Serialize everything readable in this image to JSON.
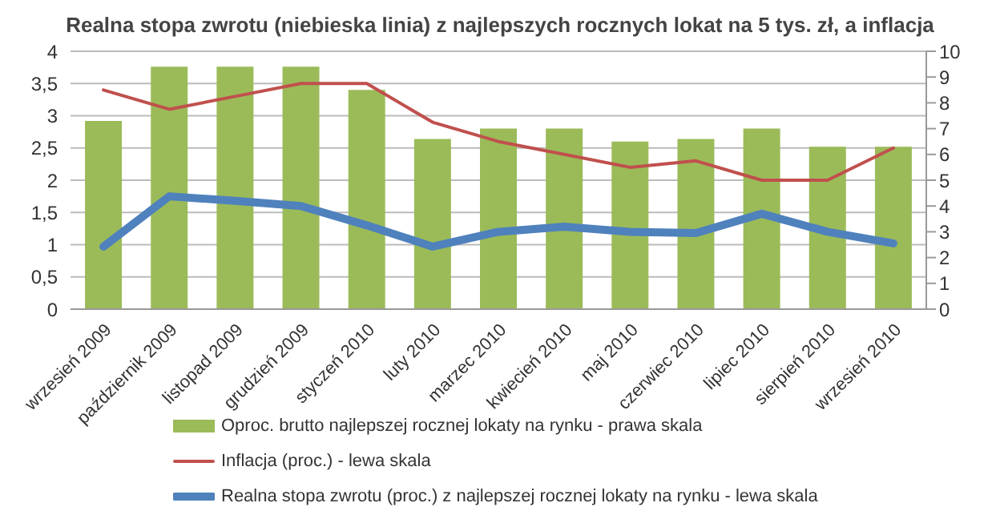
{
  "chart_data": {
    "type": "bar",
    "title": "Realna stopa zwrotu (niebieska linia) z najlepszych rocznych lokat na 5 tys. zł, a inflacja",
    "categories": [
      "wrzesień 2009",
      "październik 2009",
      "listopad 2009",
      "grudzień 2009",
      "styczeń 2010",
      "luty 2010",
      "marzec 2010",
      "kwiecień 2010",
      "maj 2010",
      "czerwiec 2010",
      "lipiec 2010",
      "sierpień 2010",
      "wrzesień 2010"
    ],
    "series": [
      {
        "name": "Oproc. brutto najlepszej rocznej lokaty na rynku - prawa skala",
        "axis": "y2",
        "color": "#9bbb59",
        "values": [
          7.3,
          9.4,
          9.4,
          9.4,
          8.5,
          6.6,
          7.0,
          7.0,
          6.5,
          6.6,
          7.0,
          6.3,
          6.3
        ]
      },
      {
        "name": "Inflacja (proc.) - lewa skala",
        "type": "line",
        "color": "#c0504d",
        "values": [
          3.4,
          3.1,
          3.3,
          3.5,
          3.5,
          2.9,
          2.6,
          2.4,
          2.2,
          2.3,
          2.0,
          2.0,
          2.5
        ]
      },
      {
        "name": "Realna stopa zwrotu (proc.) z najlepszej rocznej lokaty na rynku - lewa skala",
        "type": "line",
        "color": "#4f81bd",
        "values": [
          0.97,
          1.75,
          1.68,
          1.6,
          1.3,
          0.97,
          1.2,
          1.28,
          1.2,
          1.18,
          1.48,
          1.2,
          1.02
        ]
      }
    ],
    "ylim": [
      0,
      4
    ],
    "yticks": [
      0,
      {
        "value": 0.5,
        "label": "0,5"
      },
      1,
      {
        "value": 1.5,
        "label": "1,5"
      },
      2,
      {
        "value": 2.5,
        "label": "2,5"
      },
      3,
      {
        "value": 3.5,
        "label": "3,5"
      },
      4
    ],
    "y2lim": [
      0,
      10
    ],
    "y2ticks": [
      0,
      1,
      2,
      3,
      4,
      5,
      6,
      7,
      8,
      9,
      10
    ],
    "grid": "y",
    "legend": "bottom",
    "marker": "none"
  }
}
